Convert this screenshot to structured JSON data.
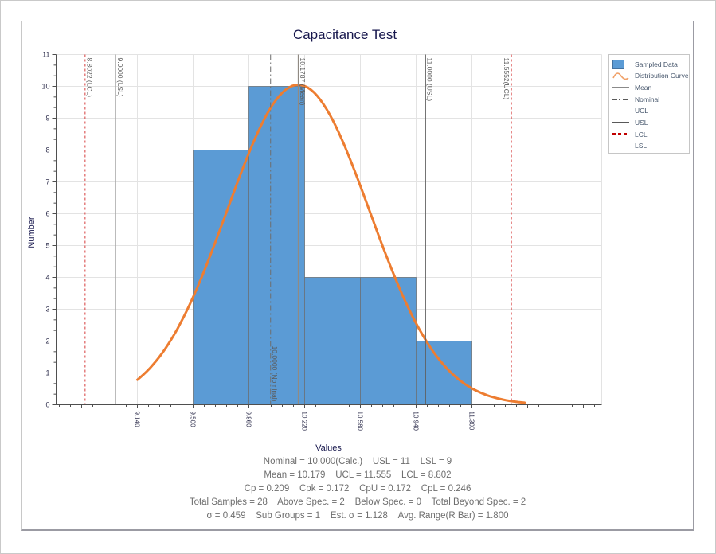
{
  "window": {
    "background": "#ffffff",
    "border_color": "#c9c9c9"
  },
  "chart_data": {
    "type": "histogram",
    "title": "Capacitance Test",
    "xlabel": "Values",
    "ylabel": "Number",
    "x_axis": {
      "min": 8.6154,
      "max": 12.1383,
      "major_tick_values": [
        9.14,
        9.5,
        9.86,
        10.22,
        10.58,
        10.94,
        11.3
      ],
      "major_tick_labels": [
        "9.140",
        "9.500",
        "9.860",
        "10.220",
        "10.580",
        "10.940",
        "11.300"
      ],
      "minor_step": 0.072
    },
    "y_axis": {
      "min": 0,
      "max": 11,
      "major_step": 1,
      "minor_per_major": 3
    },
    "bins": [
      {
        "from": 9.5,
        "to": 9.86,
        "count": 8
      },
      {
        "from": 9.86,
        "to": 10.22,
        "count": 10
      },
      {
        "from": 10.22,
        "to": 10.58,
        "count": 4
      },
      {
        "from": 10.58,
        "to": 10.94,
        "count": 4
      },
      {
        "from": 10.94,
        "to": 11.3,
        "count": 2
      }
    ],
    "bar_color": "#5B9BD5",
    "bar_border": "#6a737b",
    "grid_color": "#e3e3e3",
    "axis_color": "#4f4f4f",
    "tick_label_color": "#30304e",
    "ref_label_color": "#5a5a5a",
    "curve": {
      "name": "Distribution Curve",
      "mean": 10.1787,
      "sigma": 0.46,
      "peak": 10.05,
      "x_start": 9.14,
      "x_end": 11.64,
      "color": "#ED7D31",
      "width": 3
    },
    "reference_lines": [
      {
        "value": 8.8022,
        "label": "8.8022 (LCL)",
        "kind": "lcl",
        "style": "dashed",
        "color": "#DD5C5C",
        "width": 1.2,
        "label_side": "right",
        "label_pos": "top"
      },
      {
        "value": 9.0,
        "label": "9.0000 (LSL)",
        "kind": "lsl",
        "style": "solid",
        "color": "#a8a8a8",
        "width": 1,
        "label_side": "right",
        "label_pos": "top"
      },
      {
        "value": 10.0,
        "label": "10.0000 (Nominal)",
        "kind": "nominal",
        "style": "dashdot",
        "color": "#6e6e6e",
        "width": 1,
        "label_side": "right",
        "label_pos": "bottom"
      },
      {
        "value": 10.1787,
        "label": "10.1787 (Mean)",
        "kind": "mean",
        "style": "solid",
        "color": "#908a83",
        "width": 1.2,
        "label_side": "right",
        "label_pos": "top"
      },
      {
        "value": 11.0,
        "label": "11.0000 (USL)",
        "kind": "usl",
        "style": "solid",
        "color": "#5f5f5f",
        "width": 1.4,
        "label_side": "right",
        "label_pos": "top"
      },
      {
        "value": 11.5552,
        "label": "11.5552(UCL)",
        "kind": "ucl",
        "style": "dashed",
        "color": "#DD5C5C",
        "width": 1.2,
        "label_side": "left",
        "label_pos": "top"
      }
    ],
    "legend": {
      "position": "top-right",
      "items": [
        {
          "label": "Sampled Data",
          "swatch": "bar"
        },
        {
          "label": "Distribution Curve",
          "swatch": "curve"
        },
        {
          "label": "Mean",
          "swatch": "mean"
        },
        {
          "label": "Nominal",
          "swatch": "nominal"
        },
        {
          "label": "UCL",
          "swatch": "ucl"
        },
        {
          "label": "USL",
          "swatch": "usl"
        },
        {
          "label": "LCL",
          "swatch": "lcl"
        },
        {
          "label": "LSL",
          "swatch": "lsl"
        }
      ]
    }
  },
  "statistics": {
    "nominal": "10.000(Calc.)",
    "usl": 11,
    "lsl": 9,
    "mean": 10.179,
    "ucl": 11.555,
    "lcl": 8.802,
    "cp": 0.209,
    "cpk": 0.172,
    "cpu": 0.172,
    "cpl": 0.246,
    "total_samples": 28,
    "above_spec": 2,
    "below_spec": 0,
    "total_beyond_spec": 2,
    "sigma": 0.459,
    "sub_groups": 1,
    "est_sigma": 1.128,
    "avg_range_r_bar": 1.8
  },
  "stats_lines": [
    "Nominal = 10.000(Calc.)    USL = 11    LSL = 9",
    "Mean = 10.179    UCL = 11.555    LCL = 8.802",
    "Cp = 0.209    Cpk = 0.172    CpU = 0.172    CpL = 0.246",
    "Total Samples = 28    Above Spec. = 2    Below Spec. = 0    Total Beyond Spec. = 2",
    "σ = 0.459    Sub Groups = 1    Est. σ = 1.128    Avg. Range(R Bar) = 1.800"
  ]
}
